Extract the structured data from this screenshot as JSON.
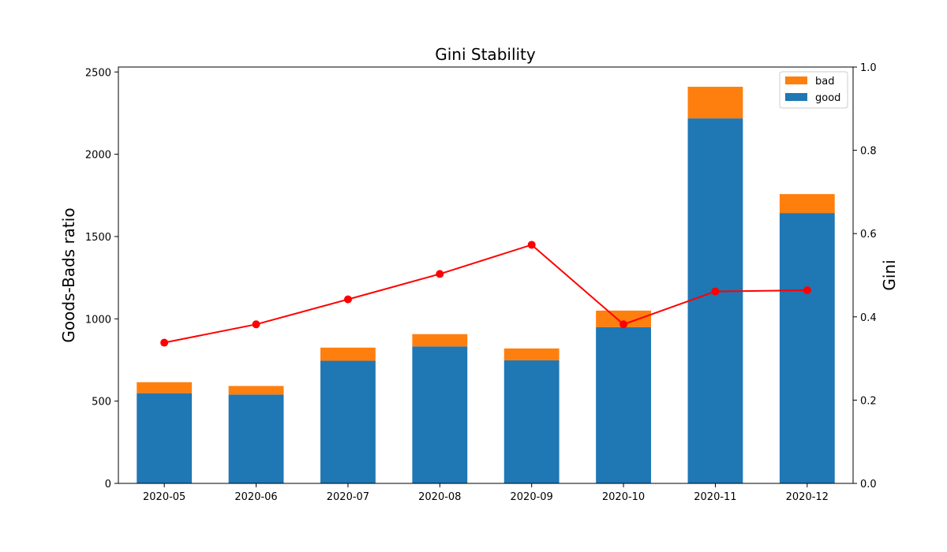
{
  "chart_data": {
    "type": "bar",
    "stacked": true,
    "title": "Gini Stability",
    "categories": [
      "2020-05",
      "2020-06",
      "2020-07",
      "2020-08",
      "2020-09",
      "2020-10",
      "2020-11",
      "2020-12"
    ],
    "series": [
      {
        "name": "good",
        "axis": "left",
        "color": "#1f77b4",
        "values": [
          548,
          540,
          745,
          832,
          748,
          950,
          2218,
          1643
        ]
      },
      {
        "name": "bad",
        "axis": "left",
        "color": "#ff7f0e",
        "values": [
          67,
          52,
          80,
          75,
          72,
          100,
          192,
          115
        ]
      }
    ],
    "line_series": {
      "axis": "right",
      "color": "#ff0000",
      "values": [
        0.338,
        0.382,
        0.442,
        0.503,
        0.573,
        0.382,
        0.461,
        0.464
      ]
    },
    "ylabel": "Goods-Bads ratio",
    "y2label": "Gini",
    "ylim": [
      0,
      2530
    ],
    "y2lim": [
      0,
      1.0
    ],
    "yticks": [
      "0",
      "500",
      "1000",
      "1500",
      "2000",
      "2500"
    ],
    "y2ticks": [
      "0.0",
      "0.2",
      "0.4",
      "0.6",
      "0.8",
      "1.0"
    ],
    "legend": {
      "position": "top-right",
      "entries": [
        "bad",
        "good"
      ]
    },
    "grid": false
  }
}
